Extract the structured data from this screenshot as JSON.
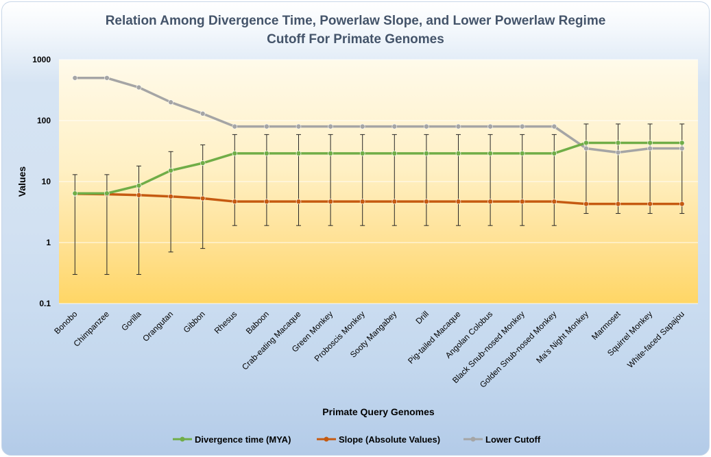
{
  "chart_data": {
    "type": "line",
    "title": "Relation Among Divergence Time, Powerlaw Slope, and Lower Powerlaw Regime Cutoff For Primate Genomes",
    "title_lines": [
      "Relation Among Divergence Time, Powerlaw Slope, and Lower Powerlaw Regime",
      "Cutoff For Primate Genomes"
    ],
    "xlabel": "Primate Query Genomes",
    "ylabel": "Values",
    "yscale": "log",
    "ylim": [
      0.1,
      1000
    ],
    "yticks": [
      "0.1",
      "1",
      "10",
      "100",
      "1000"
    ],
    "grid": true,
    "legend_position": "bottom",
    "categories": [
      "Bonobo",
      "Chimpanzee",
      "Gorilla",
      "Orangutan",
      "Gibbon",
      "Rhesus",
      "Baboon",
      "Crab-eating Macaque",
      "Green Monkey",
      "Proboscis Monkey",
      "Sooty Mangabey",
      "Drill",
      "Pig-tailed Macaque",
      "Angolan Colobus",
      "Black Snub-nosed Monkey",
      "Golden Snub-nosed Monkey",
      "Ma's Night Monkey",
      "Marmoset",
      "Squirrel Monkey",
      "White-faced Sapajou"
    ],
    "series": [
      {
        "name": "Divergence time (MYA)",
        "color": "#70ad47",
        "values": [
          6.4,
          6.4,
          8.6,
          15.2,
          20.1,
          29,
          29,
          29,
          29,
          29,
          29,
          29,
          29,
          29,
          29,
          29,
          43.2,
          43.2,
          43.2,
          43.2
        ],
        "error_low": [
          0.3,
          0.3,
          0.3,
          0.7,
          0.8,
          1.9,
          1.9,
          1.9,
          1.9,
          1.9,
          1.9,
          1.9,
          1.9,
          1.9,
          1.9,
          1.9,
          3.0,
          3.0,
          3.0,
          3.0
        ],
        "error_high": [
          13,
          13,
          18,
          31,
          40,
          59,
          59,
          59,
          59,
          59,
          59,
          59,
          59,
          59,
          59,
          59,
          88,
          88,
          88,
          88
        ]
      },
      {
        "name": "Slope (Absolute Values)",
        "color": "#c55a11",
        "values": [
          6.3,
          6.2,
          6.0,
          5.7,
          5.3,
          4.7,
          4.7,
          4.7,
          4.7,
          4.7,
          4.7,
          4.7,
          4.7,
          4.7,
          4.7,
          4.7,
          4.3,
          4.3,
          4.3,
          4.3
        ]
      },
      {
        "name": "Lower Cutoff",
        "color": "#a5a5a5",
        "values": [
          500,
          500,
          350,
          200,
          130,
          80,
          80,
          80,
          80,
          80,
          80,
          80,
          80,
          80,
          80,
          80,
          35,
          30,
          35,
          35
        ]
      }
    ]
  }
}
